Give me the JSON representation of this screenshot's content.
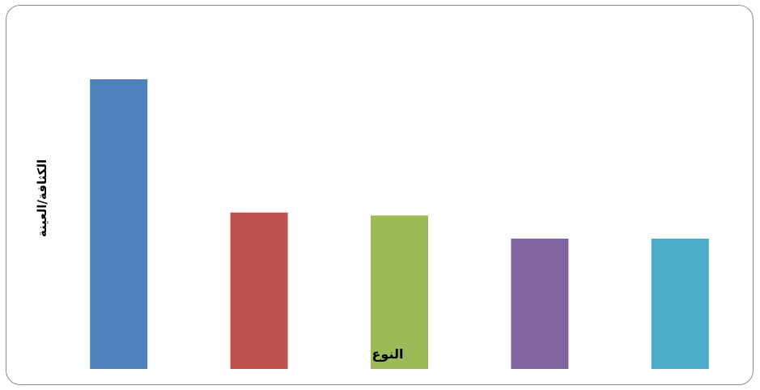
{
  "chart_data": {
    "type": "bar",
    "categories": [
      "",
      "",
      "",
      "",
      ""
    ],
    "values": [
      100,
      54,
      53,
      45,
      45
    ],
    "colors": [
      "#4F81BD",
      "#C0504D",
      "#9BBB59",
      "#8064A2",
      "#4BACC6"
    ],
    "ylim": [
      0,
      100
    ],
    "xlabel": "النوع",
    "ylabel": "الكثافة/العينة",
    "title": "",
    "grid": false,
    "legend": "none"
  }
}
